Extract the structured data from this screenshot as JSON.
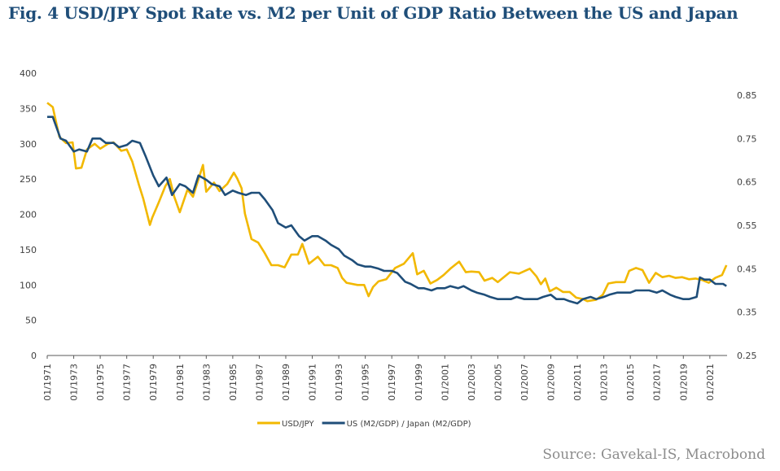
{
  "title": "Fig. 4 USD/JPY Spot Rate vs. M2 per Unit of GDP Ratio Between the US and Japan",
  "source": "Source: Gavekal-IS, Macrobond",
  "colors": {
    "title": "#1f4e79",
    "usdjpy": "#f2b800",
    "ratio": "#1f4e79",
    "source": "#8c8c8c"
  },
  "chart_data": {
    "type": "line",
    "title": "Fig. 4 USD/JPY Spot Rate vs. M2 per Unit of GDP Ratio Between the US and Japan",
    "xlabel": "",
    "ylabel": "",
    "grid": false,
    "legend_position": "bottom",
    "x_ticks": [
      "01/1971",
      "01/1973",
      "01/1975",
      "01/1977",
      "01/1979",
      "01/1981",
      "01/1983",
      "01/1985",
      "01/1987",
      "01/1989",
      "01/1991",
      "01/1993",
      "01/1995",
      "01/1997",
      "01/1999",
      "01/2001",
      "01/2003",
      "01/2005",
      "01/2007",
      "01/2009",
      "01/2011",
      "01/2013",
      "01/2015",
      "01/2017",
      "01/2019",
      "01/2021"
    ],
    "y_left": {
      "ticks": [
        "400",
        "350",
        "300",
        "250",
        "200",
        "150",
        "100",
        "50",
        "0"
      ],
      "range": [
        0,
        400
      ]
    },
    "y_right": {
      "ticks": [
        "0.85",
        "0.75",
        "0.65",
        "0.55",
        "0.45",
        "0.35",
        "0.25"
      ],
      "range": [
        0.25,
        0.85
      ]
    },
    "series": [
      {
        "name": "USD/JPY",
        "axis": "left",
        "points": [
          [
            "1971-01",
            358
          ],
          [
            "1971-06",
            352
          ],
          [
            "1971-12",
            310
          ],
          [
            "1972-06",
            301
          ],
          [
            "1972-12",
            302
          ],
          [
            "1973-03",
            265
          ],
          [
            "1973-08",
            266
          ],
          [
            "1974-01",
            292
          ],
          [
            "1974-08",
            300
          ],
          [
            "1975-01",
            293
          ],
          [
            "1975-08",
            300
          ],
          [
            "1976-01",
            302
          ],
          [
            "1976-08",
            290
          ],
          [
            "1977-01",
            292
          ],
          [
            "1977-06",
            275
          ],
          [
            "1977-12",
            242
          ],
          [
            "1978-04",
            222
          ],
          [
            "1978-10",
            185
          ],
          [
            "1978-12",
            195
          ],
          [
            "1979-06",
            217
          ],
          [
            "1979-12",
            240
          ],
          [
            "1980-04",
            250
          ],
          [
            "1980-08",
            225
          ],
          [
            "1981-01",
            203
          ],
          [
            "1981-08",
            235
          ],
          [
            "1982-01",
            225
          ],
          [
            "1982-10",
            270
          ],
          [
            "1983-01",
            232
          ],
          [
            "1983-08",
            245
          ],
          [
            "1984-01",
            233
          ],
          [
            "1984-08",
            243
          ],
          [
            "1985-02",
            259
          ],
          [
            "1985-05",
            251
          ],
          [
            "1985-09",
            237
          ],
          [
            "1985-12",
            201
          ],
          [
            "1986-06",
            165
          ],
          [
            "1986-12",
            160
          ],
          [
            "1987-06",
            145
          ],
          [
            "1987-12",
            128
          ],
          [
            "1988-06",
            128
          ],
          [
            "1988-12",
            125
          ],
          [
            "1989-06",
            143
          ],
          [
            "1989-12",
            143
          ],
          [
            "1990-04",
            158
          ],
          [
            "1990-10",
            130
          ],
          [
            "1991-06",
            140
          ],
          [
            "1991-12",
            128
          ],
          [
            "1992-06",
            128
          ],
          [
            "1992-12",
            124
          ],
          [
            "1993-04",
            110
          ],
          [
            "1993-08",
            103
          ],
          [
            "1994-06",
            100
          ],
          [
            "1994-12",
            100
          ],
          [
            "1995-04",
            84
          ],
          [
            "1995-08",
            97
          ],
          [
            "1996-01",
            105
          ],
          [
            "1996-08",
            108
          ],
          [
            "1997-04",
            124
          ],
          [
            "1997-12",
            130
          ],
          [
            "1998-08",
            145
          ],
          [
            "1998-12",
            115
          ],
          [
            "1999-06",
            120
          ],
          [
            "1999-12",
            102
          ],
          [
            "2000-06",
            107
          ],
          [
            "2000-12",
            114
          ],
          [
            "2001-06",
            123
          ],
          [
            "2002-02",
            133
          ],
          [
            "2002-08",
            118
          ],
          [
            "2003-01",
            119
          ],
          [
            "2003-08",
            118
          ],
          [
            "2004-01",
            106
          ],
          [
            "2004-08",
            110
          ],
          [
            "2005-01",
            104
          ],
          [
            "2005-12",
            118
          ],
          [
            "2006-08",
            116
          ],
          [
            "2007-06",
            123
          ],
          [
            "2007-12",
            112
          ],
          [
            "2008-04",
            101
          ],
          [
            "2008-08",
            109
          ],
          [
            "2008-12",
            91
          ],
          [
            "2009-06",
            96
          ],
          [
            "2009-12",
            90
          ],
          [
            "2010-06",
            90
          ],
          [
            "2010-12",
            82
          ],
          [
            "2011-06",
            80
          ],
          [
            "2011-10",
            77
          ],
          [
            "2012-06",
            79
          ],
          [
            "2012-12",
            86
          ],
          [
            "2013-05",
            102
          ],
          [
            "2013-12",
            104
          ],
          [
            "2014-08",
            104
          ],
          [
            "2014-12",
            120
          ],
          [
            "2015-06",
            124
          ],
          [
            "2015-12",
            121
          ],
          [
            "2016-06",
            103
          ],
          [
            "2016-12",
            117
          ],
          [
            "2017-06",
            111
          ],
          [
            "2017-12",
            113
          ],
          [
            "2018-06",
            110
          ],
          [
            "2018-12",
            111
          ],
          [
            "2019-06",
            108
          ],
          [
            "2019-12",
            109
          ],
          [
            "2020-06",
            107
          ],
          [
            "2020-12",
            103
          ],
          [
            "2021-06",
            110
          ],
          [
            "2021-12",
            114
          ],
          [
            "2022-04",
            128
          ]
        ]
      },
      {
        "name": "US (M2/GDP) / Japan (M2/GDP)",
        "axis": "right",
        "points": [
          [
            "1971-01",
            0.8
          ],
          [
            "1971-06",
            0.8
          ],
          [
            "1972-01",
            0.75
          ],
          [
            "1972-06",
            0.745
          ],
          [
            "1973-01",
            0.72
          ],
          [
            "1973-06",
            0.725
          ],
          [
            "1974-01",
            0.72
          ],
          [
            "1974-06",
            0.75
          ],
          [
            "1975-01",
            0.75
          ],
          [
            "1975-06",
            0.74
          ],
          [
            "1976-01",
            0.74
          ],
          [
            "1976-06",
            0.73
          ],
          [
            "1977-01",
            0.735
          ],
          [
            "1977-06",
            0.745
          ],
          [
            "1978-01",
            0.74
          ],
          [
            "1978-06",
            0.71
          ],
          [
            "1979-01",
            0.665
          ],
          [
            "1979-06",
            0.64
          ],
          [
            "1980-01",
            0.66
          ],
          [
            "1980-06",
            0.62
          ],
          [
            "1981-01",
            0.645
          ],
          [
            "1981-06",
            0.64
          ],
          [
            "1982-01",
            0.625
          ],
          [
            "1982-06",
            0.665
          ],
          [
            "1983-01",
            0.655
          ],
          [
            "1983-06",
            0.645
          ],
          [
            "1984-01",
            0.64
          ],
          [
            "1984-06",
            0.62
          ],
          [
            "1985-01",
            0.63
          ],
          [
            "1985-06",
            0.625
          ],
          [
            "1986-01",
            0.62
          ],
          [
            "1986-06",
            0.625
          ],
          [
            "1987-01",
            0.625
          ],
          [
            "1987-06",
            0.61
          ],
          [
            "1988-01",
            0.585
          ],
          [
            "1988-06",
            0.555
          ],
          [
            "1989-01",
            0.545
          ],
          [
            "1989-06",
            0.55
          ],
          [
            "1990-01",
            0.525
          ],
          [
            "1990-06",
            0.515
          ],
          [
            "1991-01",
            0.525
          ],
          [
            "1991-06",
            0.525
          ],
          [
            "1992-01",
            0.515
          ],
          [
            "1992-06",
            0.505
          ],
          [
            "1993-01",
            0.495
          ],
          [
            "1993-06",
            0.48
          ],
          [
            "1994-01",
            0.47
          ],
          [
            "1994-06",
            0.46
          ],
          [
            "1995-01",
            0.455
          ],
          [
            "1995-06",
            0.455
          ],
          [
            "1996-01",
            0.45
          ],
          [
            "1996-06",
            0.445
          ],
          [
            "1997-01",
            0.445
          ],
          [
            "1997-06",
            0.44
          ],
          [
            "1998-01",
            0.42
          ],
          [
            "1998-06",
            0.415
          ],
          [
            "1999-01",
            0.405
          ],
          [
            "1999-06",
            0.405
          ],
          [
            "2000-01",
            0.4
          ],
          [
            "2000-06",
            0.405
          ],
          [
            "2001-01",
            0.405
          ],
          [
            "2001-06",
            0.41
          ],
          [
            "2002-01",
            0.405
          ],
          [
            "2002-06",
            0.41
          ],
          [
            "2003-01",
            0.4
          ],
          [
            "2003-06",
            0.395
          ],
          [
            "2004-01",
            0.39
          ],
          [
            "2004-06",
            0.385
          ],
          [
            "2005-01",
            0.38
          ],
          [
            "2005-06",
            0.38
          ],
          [
            "2006-01",
            0.38
          ],
          [
            "2006-06",
            0.385
          ],
          [
            "2007-01",
            0.38
          ],
          [
            "2007-06",
            0.38
          ],
          [
            "2008-01",
            0.38
          ],
          [
            "2008-06",
            0.385
          ],
          [
            "2009-01",
            0.39
          ],
          [
            "2009-06",
            0.38
          ],
          [
            "2010-01",
            0.38
          ],
          [
            "2010-06",
            0.375
          ],
          [
            "2011-01",
            0.37
          ],
          [
            "2011-06",
            0.38
          ],
          [
            "2012-01",
            0.385
          ],
          [
            "2012-06",
            0.38
          ],
          [
            "2013-01",
            0.385
          ],
          [
            "2013-06",
            0.39
          ],
          [
            "2014-01",
            0.395
          ],
          [
            "2014-06",
            0.395
          ],
          [
            "2015-01",
            0.395
          ],
          [
            "2015-06",
            0.4
          ],
          [
            "2016-01",
            0.4
          ],
          [
            "2016-06",
            0.4
          ],
          [
            "2017-01",
            0.395
          ],
          [
            "2017-06",
            0.4
          ],
          [
            "2018-01",
            0.39
          ],
          [
            "2018-06",
            0.385
          ],
          [
            "2019-01",
            0.38
          ],
          [
            "2019-06",
            0.38
          ],
          [
            "2020-01",
            0.385
          ],
          [
            "2020-04",
            0.43
          ],
          [
            "2020-08",
            0.425
          ],
          [
            "2021-01",
            0.425
          ],
          [
            "2021-06",
            0.415
          ],
          [
            "2022-01",
            0.415
          ],
          [
            "2022-04",
            0.41
          ]
        ]
      }
    ]
  }
}
